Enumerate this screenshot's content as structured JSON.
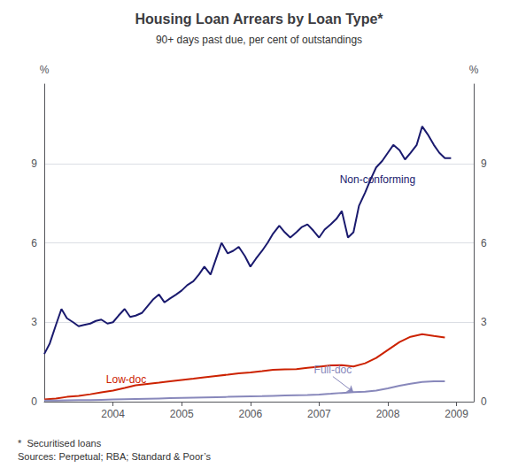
{
  "chart_data": {
    "type": "line",
    "title": "Housing Loan Arrears by Loan Type*",
    "subtitle": "90+ days past due, per cent of outstandings",
    "ylabel": "%",
    "y2label": "%",
    "footnotes": [
      "*  Securitised loans",
      "Sources: Perpetual; RBA; Standard & Poor’s"
    ],
    "xlim": [
      2003.0,
      2009.25
    ],
    "xticks": [
      2004,
      2005,
      2006,
      2007,
      2008,
      2009
    ],
    "ylim": [
      0,
      12
    ],
    "yticks": [
      0,
      3,
      6,
      9
    ],
    "y2lim": [
      0,
      12
    ],
    "y2ticks": [
      0,
      3,
      6,
      9
    ],
    "grid": true,
    "series": [
      {
        "name": "Non-conforming",
        "color": "#1a1a6e",
        "x": [
          2003.0,
          2003.08,
          2003.17,
          2003.25,
          2003.33,
          2003.42,
          2003.5,
          2003.58,
          2003.67,
          2003.75,
          2003.83,
          2003.92,
          2004.0,
          2004.08,
          2004.17,
          2004.25,
          2004.33,
          2004.42,
          2004.5,
          2004.58,
          2004.67,
          2004.75,
          2004.83,
          2004.92,
          2005.0,
          2005.08,
          2005.17,
          2005.25,
          2005.33,
          2005.42,
          2005.5,
          2005.58,
          2005.67,
          2005.75,
          2005.83,
          2005.92,
          2006.0,
          2006.08,
          2006.17,
          2006.25,
          2006.33,
          2006.42,
          2006.5,
          2006.58,
          2006.67,
          2006.75,
          2006.83,
          2006.92,
          2007.0,
          2007.08,
          2007.17,
          2007.25,
          2007.33,
          2007.42,
          2007.5,
          2007.58,
          2007.67,
          2007.75,
          2007.83,
          2007.92,
          2008.0,
          2008.08,
          2008.17,
          2008.25,
          2008.33,
          2008.42,
          2008.5,
          2008.58,
          2008.67,
          2008.75,
          2008.83,
          2008.92
        ],
        "values": [
          1.8,
          2.2,
          2.9,
          3.5,
          3.15,
          3.0,
          2.85,
          2.9,
          2.95,
          3.05,
          3.1,
          2.95,
          3.0,
          3.25,
          3.5,
          3.2,
          3.25,
          3.35,
          3.6,
          3.85,
          4.05,
          3.75,
          3.9,
          4.05,
          4.2,
          4.4,
          4.55,
          4.8,
          5.1,
          4.8,
          5.4,
          6.0,
          5.6,
          5.7,
          5.85,
          5.5,
          5.1,
          5.4,
          5.7,
          6.0,
          6.35,
          6.65,
          6.4,
          6.2,
          6.4,
          6.6,
          6.7,
          6.45,
          6.2,
          6.5,
          6.7,
          6.9,
          7.2,
          6.2,
          6.4,
          7.4,
          7.9,
          8.4,
          8.85,
          9.1,
          9.4,
          9.7,
          9.5,
          9.15,
          9.4,
          9.7,
          10.4,
          10.1,
          9.7,
          9.4,
          9.2,
          9.2
        ]
      },
      {
        "name": "Low-doc",
        "color": "#cc2200",
        "x": [
          2003.0,
          2003.17,
          2003.33,
          2003.5,
          2003.67,
          2003.83,
          2004.0,
          2004.17,
          2004.33,
          2004.5,
          2004.67,
          2004.83,
          2005.0,
          2005.17,
          2005.33,
          2005.5,
          2005.67,
          2005.83,
          2006.0,
          2006.17,
          2006.33,
          2006.5,
          2006.67,
          2006.83,
          2007.0,
          2007.17,
          2007.33,
          2007.5,
          2007.67,
          2007.83,
          2008.0,
          2008.17,
          2008.33,
          2008.5,
          2008.67,
          2008.83
        ],
        "values": [
          0.08,
          0.12,
          0.18,
          0.22,
          0.28,
          0.35,
          0.42,
          0.52,
          0.62,
          0.67,
          0.72,
          0.77,
          0.82,
          0.87,
          0.92,
          0.97,
          1.02,
          1.07,
          1.1,
          1.15,
          1.2,
          1.22,
          1.23,
          1.28,
          1.32,
          1.37,
          1.38,
          1.33,
          1.45,
          1.65,
          1.95,
          2.25,
          2.45,
          2.55,
          2.48,
          2.42
        ]
      },
      {
        "name": "Full-doc",
        "color": "#8888bb",
        "x": [
          2003.0,
          2003.17,
          2003.33,
          2003.5,
          2003.67,
          2003.83,
          2004.0,
          2004.17,
          2004.33,
          2004.5,
          2004.67,
          2004.83,
          2005.0,
          2005.17,
          2005.33,
          2005.5,
          2005.67,
          2005.83,
          2006.0,
          2006.17,
          2006.33,
          2006.5,
          2006.67,
          2006.83,
          2007.0,
          2007.17,
          2007.33,
          2007.5,
          2007.67,
          2007.83,
          2008.0,
          2008.17,
          2008.33,
          2008.5,
          2008.67,
          2008.83
        ],
        "values": [
          0.04,
          0.045,
          0.05,
          0.055,
          0.06,
          0.07,
          0.08,
          0.09,
          0.1,
          0.11,
          0.12,
          0.13,
          0.14,
          0.15,
          0.16,
          0.17,
          0.18,
          0.19,
          0.2,
          0.21,
          0.22,
          0.23,
          0.24,
          0.25,
          0.27,
          0.3,
          0.33,
          0.36,
          0.38,
          0.42,
          0.5,
          0.6,
          0.68,
          0.74,
          0.77,
          0.77
        ]
      }
    ],
    "annotations": [
      {
        "text": "Non-conforming",
        "x": 2007.3,
        "y": 8.2,
        "color": "#1a1a6e"
      },
      {
        "text": "Low-doc",
        "x": 2003.9,
        "y": 0.62,
        "color": "#cc2200"
      },
      {
        "text": "Full-doc",
        "x": 2007.2,
        "y": 0.95,
        "color": "#8888bb",
        "arrow_x": 2007.5,
        "arrow_y": 0.36
      }
    ]
  }
}
